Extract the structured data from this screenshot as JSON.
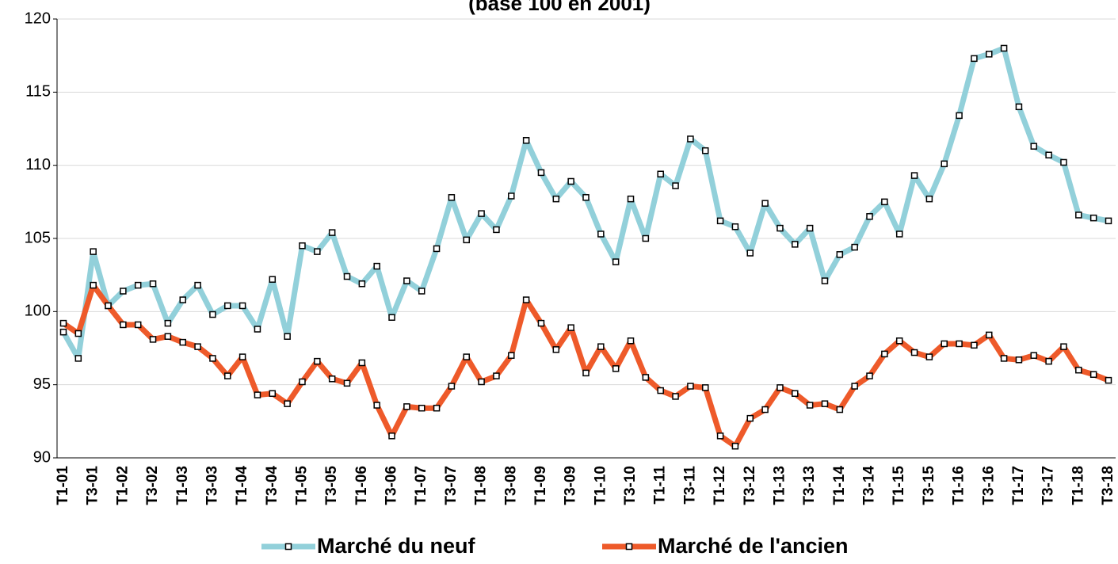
{
  "chart_data": {
    "type": "line",
    "title": "(base 100 en 2001)",
    "categories": [
      "T1-01",
      null,
      "T3-01",
      null,
      "T1-02",
      null,
      "T3-02",
      null,
      "T1-03",
      null,
      "T3-03",
      null,
      "T1-04",
      null,
      "T3-04",
      null,
      "T1-05",
      null,
      "T3-05",
      null,
      "T1-06",
      null,
      "T3-06",
      null,
      "T1-07",
      null,
      "T3-07",
      null,
      "T1-08",
      null,
      "T3-08",
      null,
      "T1-09",
      null,
      "T3-09",
      null,
      "T1-10",
      null,
      "T3-10",
      null,
      "T1-11",
      null,
      "T3-11",
      null,
      "T1-12",
      null,
      "T3-12",
      null,
      "T1-13",
      null,
      "T3-13",
      null,
      "T1-14",
      null,
      "T3-14",
      null,
      "T1-15",
      null,
      "T3-15",
      null,
      "T1-16",
      null,
      "T3-16",
      null,
      "T1-17",
      null,
      "T3-17",
      null,
      "T1-18",
      null,
      "T3-18"
    ],
    "series": [
      {
        "name": "Marché du neuf",
        "color": "#92d0da",
        "values": [
          98.6,
          96.8,
          104.1,
          100.4,
          101.4,
          101.8,
          101.9,
          99.2,
          100.8,
          101.8,
          99.8,
          100.4,
          100.4,
          98.8,
          102.2,
          98.3,
          104.5,
          104.1,
          105.4,
          102.4,
          101.9,
          103.1,
          99.6,
          102.1,
          101.4,
          104.3,
          107.8,
          104.9,
          106.7,
          105.6,
          107.9,
          111.7,
          109.5,
          107.7,
          108.9,
          107.8,
          105.3,
          103.4,
          107.7,
          105.0,
          109.4,
          108.6,
          111.8,
          111.0,
          106.2,
          105.8,
          104.0,
          107.4,
          105.7,
          104.6,
          105.7,
          102.1,
          103.9,
          104.4,
          106.5,
          107.5,
          105.3,
          109.3,
          107.7,
          110.1,
          113.4,
          117.3,
          117.6,
          118.0,
          114.0,
          111.3,
          110.7,
          110.2,
          106.6,
          106.4,
          106.2
        ]
      },
      {
        "name": "Marché de l'ancien",
        "color": "#ee5a2a",
        "values": [
          99.2,
          98.5,
          101.8,
          100.4,
          99.1,
          99.1,
          98.1,
          98.3,
          97.9,
          97.6,
          96.8,
          95.6,
          96.9,
          94.3,
          94.4,
          93.7,
          95.2,
          96.6,
          95.4,
          95.1,
          96.5,
          93.6,
          91.5,
          93.5,
          93.4,
          93.4,
          94.9,
          96.9,
          95.2,
          95.6,
          97.0,
          100.8,
          99.2,
          97.4,
          98.9,
          95.8,
          97.6,
          96.1,
          98.0,
          95.5,
          94.6,
          94.2,
          94.9,
          94.8,
          91.5,
          90.8,
          92.7,
          93.3,
          94.8,
          94.4,
          93.6,
          93.7,
          93.3,
          94.9,
          95.6,
          97.1,
          98.0,
          97.2,
          96.9,
          97.8,
          97.8,
          97.7,
          98.4,
          96.8,
          96.7,
          97.0,
          96.6,
          97.6,
          96.0,
          95.7,
          95.3
        ]
      }
    ],
    "ylim": [
      90,
      120
    ],
    "yticks": [
      90,
      95,
      100,
      105,
      110,
      115,
      120
    ],
    "grid": true,
    "legend": "bottom"
  }
}
